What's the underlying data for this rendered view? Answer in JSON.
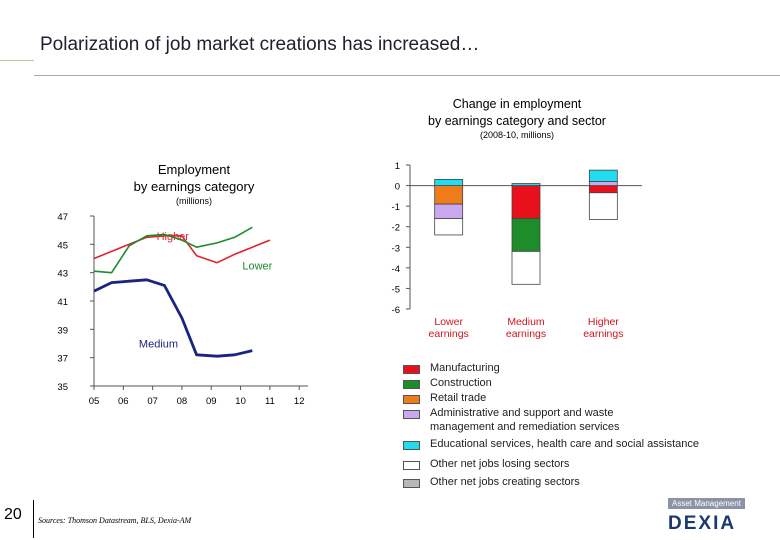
{
  "page": {
    "title": "Polarization of job market creations has increased…",
    "page_number": "20",
    "source": "Sources: Thomson Datastream, BLS, Dexia-AM",
    "logo_top": "Asset Management",
    "logo_main": "DEXIA"
  },
  "chart_data": [
    {
      "type": "line",
      "title": "Employment by earnings category",
      "title_lines": [
        "Employment",
        "by earnings category"
      ],
      "subtitle": "(millions)",
      "x": [
        "05",
        "06",
        "07",
        "08",
        "09",
        "10",
        "11",
        "12"
      ],
      "x_values": [
        2005,
        2006,
        2007,
        2008,
        2009,
        2010,
        2011,
        2012
      ],
      "ylim": [
        35,
        47
      ],
      "yticks": [
        35,
        37,
        39,
        41,
        43,
        45,
        47
      ],
      "series": [
        {
          "name": "Higher",
          "color": "#e0242c",
          "points": [
            [
              2005,
              44.0
            ],
            [
              2005.6,
              44.5
            ],
            [
              2006.2,
              45.0
            ],
            [
              2006.8,
              45.5
            ],
            [
              2007.4,
              45.6
            ],
            [
              2008,
              45.6
            ],
            [
              2008.5,
              44.2
            ],
            [
              2009.2,
              43.7
            ],
            [
              2009.8,
              44.3
            ],
            [
              2010.4,
              44.8
            ],
            [
              2011.0,
              45.3
            ]
          ]
        },
        {
          "name": "Lower",
          "color": "#1f8a2a",
          "points": [
            [
              2005,
              43.1
            ],
            [
              2005.6,
              43.0
            ],
            [
              2006.2,
              44.9
            ],
            [
              2006.8,
              45.6
            ],
            [
              2007.4,
              45.7
            ],
            [
              2008,
              45.3
            ],
            [
              2008.5,
              44.8
            ],
            [
              2009.2,
              45.1
            ],
            [
              2009.8,
              45.5
            ],
            [
              2010.4,
              46.2
            ]
          ]
        },
        {
          "name": "Medium",
          "color": "#1a237e",
          "points": [
            [
              2005,
              41.7
            ],
            [
              2005.6,
              42.3
            ],
            [
              2006.2,
              42.4
            ],
            [
              2006.8,
              42.5
            ],
            [
              2007.4,
              42.1
            ],
            [
              2008,
              39.8
            ],
            [
              2008.5,
              37.2
            ],
            [
              2009.2,
              37.1
            ],
            [
              2009.8,
              37.2
            ],
            [
              2010.4,
              37.5
            ]
          ]
        }
      ]
    },
    {
      "type": "bar",
      "stacked": true,
      "title": "Change in employment by earnings category and sector",
      "title_lines": [
        "Change in employment",
        "by earnings category and sector"
      ],
      "subtitle": "(2008-10, millions)",
      "categories": [
        [
          "Lower",
          "earnings"
        ],
        [
          "Medium",
          "earnings"
        ],
        [
          "Higher",
          "earnings"
        ]
      ],
      "ylim": [
        -6,
        1
      ],
      "yticks": [
        1,
        0,
        -1,
        -2,
        -3,
        -4,
        -5,
        -6
      ],
      "series": [
        {
          "name": "Manufacturing",
          "color": "#e8101a",
          "values": [
            0,
            -1.6,
            -0.35
          ]
        },
        {
          "name": "Construction",
          "color": "#1e8c28",
          "values": [
            0,
            -1.6,
            0
          ]
        },
        {
          "name": "Retail trade",
          "color": "#ee7c1a",
          "values": [
            -0.9,
            0,
            0
          ]
        },
        {
          "name": "Administrative and support and waste management and remediation services",
          "color": "#c9a8f0",
          "values": [
            -0.7,
            0,
            0.2
          ]
        },
        {
          "name": "Educational services, health care and social assistance",
          "color": "#22dcef",
          "values": [
            0.3,
            0.1,
            0.55
          ]
        },
        {
          "name": "Other net jobs losing sectors",
          "color": "#ffffff",
          "values": [
            -0.8,
            -1.6,
            -1.3
          ]
        },
        {
          "name": "Other net jobs creating sectors",
          "color": "#b8b8b8",
          "values": [
            0,
            0,
            0
          ]
        }
      ]
    }
  ],
  "legend": [
    {
      "lines": [
        "Manufacturing"
      ],
      "color": "#e8101a"
    },
    {
      "lines": [
        "Construction"
      ],
      "color": "#1e8c28"
    },
    {
      "lines": [
        "Retail trade"
      ],
      "color": "#ee7c1a"
    },
    {
      "lines": [
        "Administrative and support and waste",
        "management and remediation services"
      ],
      "color": "#c9a8f0"
    },
    {
      "lines": [
        "Educational services, health care and social assistance"
      ],
      "color": "#22dcef"
    },
    {
      "lines": [
        "Other net jobs losing sectors"
      ],
      "color": "#ffffff"
    },
    {
      "lines": [
        "Other net jobs creating sectors"
      ],
      "color": "#b8b8b8"
    }
  ]
}
